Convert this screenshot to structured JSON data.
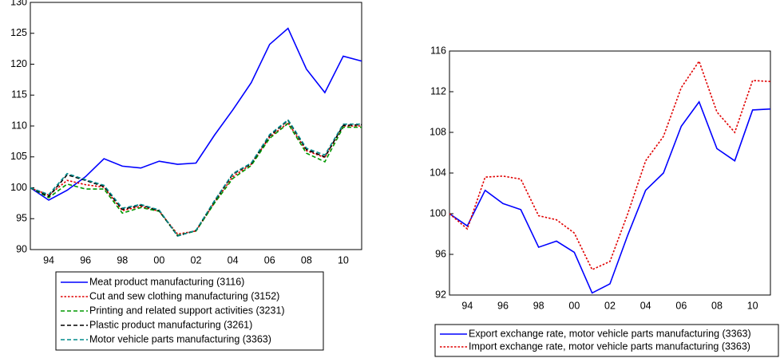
{
  "chart_data": [
    {
      "type": "line",
      "categories": [
        null,
        "94",
        null,
        "96",
        null,
        "98",
        null,
        "00",
        null,
        "02",
        null,
        "04",
        null,
        "06",
        null,
        "08",
        null,
        "10",
        null
      ],
      "ylim": [
        90,
        130
      ],
      "yticks": [
        90,
        95,
        100,
        105,
        110,
        115,
        120,
        125,
        130
      ],
      "series": [
        {
          "name": "Meat product manufacturing (3116)",
          "color": "#0000ff",
          "line_style": "solid",
          "values": [
            100,
            98,
            99.6,
            101.8,
            104.7,
            103.5,
            103.2,
            104.3,
            103.8,
            104,
            108.5,
            112.6,
            117,
            123.2,
            125.8,
            119.2,
            115.4,
            121.3,
            120.5
          ]
        },
        {
          "name": "Cut and sew clothing manufacturing (3152)",
          "color": "#e00000",
          "line_style": "dotted",
          "values": [
            100,
            98.8,
            101.2,
            100.5,
            100.1,
            96.3,
            97,
            96.2,
            92.5,
            93,
            97.6,
            101.8,
            103.8,
            108.2,
            110.5,
            106,
            104.9,
            110,
            110
          ]
        },
        {
          "name": "Printing and related support activities (3231)",
          "color": "#009900",
          "line_style": "dashed",
          "values": [
            100,
            98.4,
            100.6,
            99.8,
            99.8,
            95.9,
            96.8,
            96.2,
            92.3,
            93,
            97.5,
            101.5,
            103.6,
            108,
            110.4,
            105.6,
            104.2,
            109.8,
            109.8
          ]
        },
        {
          "name": "Plastic product manufacturing (3261)",
          "color": "#000000",
          "line_style": "dashed",
          "values": [
            100,
            98.6,
            102.1,
            101.2,
            100.2,
            96.5,
            97.2,
            96.3,
            92.2,
            93.1,
            97.8,
            102.2,
            103.9,
            108.4,
            110.9,
            106.2,
            105,
            110.1,
            110.2
          ]
        },
        {
          "name": "Motor vehicle parts manufacturing (3363)",
          "color": "#008b8b",
          "line_style": "dashed",
          "values": [
            100,
            98.9,
            102.3,
            101.3,
            100.4,
            96.7,
            97.3,
            96.4,
            92.2,
            93.1,
            97.9,
            102.3,
            104,
            108.6,
            111,
            106.4,
            105.3,
            110.3,
            110.3
          ]
        }
      ]
    },
    {
      "type": "line",
      "categories": [
        null,
        "94",
        null,
        "96",
        null,
        "98",
        null,
        "00",
        null,
        "02",
        null,
        "04",
        null,
        "06",
        null,
        "08",
        null,
        "10",
        null
      ],
      "ylim": [
        92,
        116
      ],
      "yticks": [
        92,
        96,
        100,
        104,
        108,
        112,
        116
      ],
      "series": [
        {
          "name": "Export exchange rate, motor vehicle parts manufacturing (3363)",
          "color": "#0000ff",
          "line_style": "solid",
          "values": [
            100,
            98.8,
            102.3,
            101,
            100.4,
            96.7,
            97.3,
            96.2,
            92.2,
            93.1,
            97.9,
            102.3,
            104,
            108.6,
            111,
            106.4,
            105.2,
            110.2,
            110.3
          ]
        },
        {
          "name": "Import exchange rate, motor vehicle parts manufacturing (3363)",
          "color": "#e00000",
          "line_style": "dotted",
          "values": [
            100,
            98.5,
            103.6,
            103.7,
            103.4,
            99.8,
            99.4,
            98.1,
            94.5,
            95.3,
            100,
            105.2,
            107.6,
            112.4,
            115,
            110,
            108,
            113.1,
            113
          ]
        }
      ]
    }
  ]
}
